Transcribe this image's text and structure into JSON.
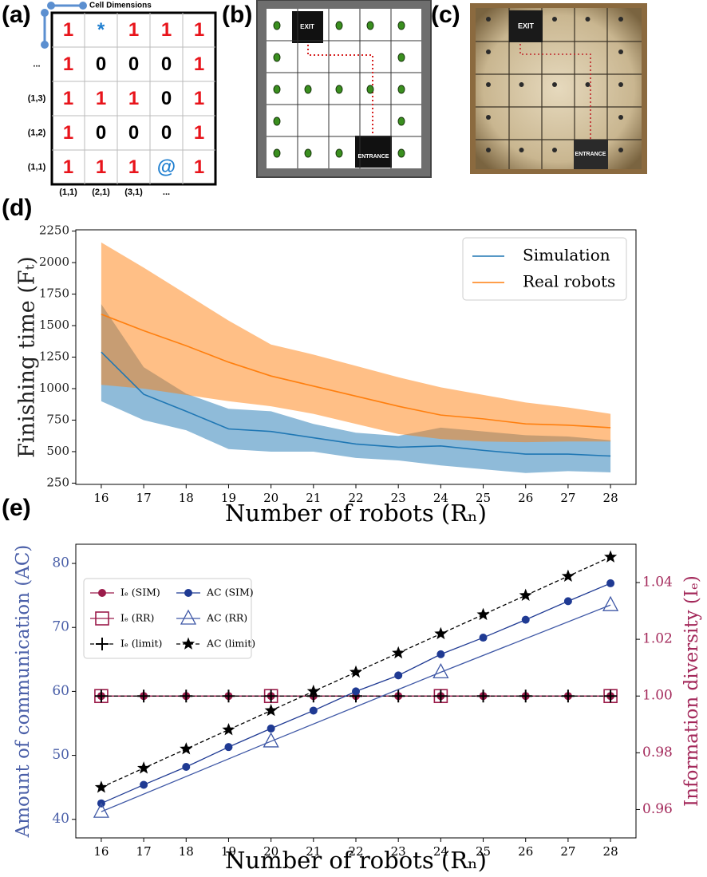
{
  "panels": {
    "a": {
      "label": "(a)",
      "cell_dimensions": "Cell Dimensions",
      "cells": [
        [
          "1",
          "*",
          "1",
          "1",
          "1"
        ],
        [
          "1",
          "0",
          "0",
          "0",
          "1"
        ],
        [
          "1",
          "1",
          "1",
          "0",
          "1"
        ],
        [
          "1",
          "0",
          "0",
          "0",
          "1"
        ],
        [
          "1",
          "1",
          "1",
          "@",
          "1"
        ]
      ],
      "row_labels": [
        "...",
        "(1,3)",
        "(1,2)",
        "(1,1)"
      ],
      "col_labels": [
        "(1,1)",
        "(2,1)",
        "(3,1)",
        "..."
      ]
    },
    "b": {
      "label": "(b)",
      "exit": "EXIT",
      "entrance": "ENTRANCE"
    },
    "c": {
      "label": "(c)",
      "exit": "EXIT",
      "entrance": "ENTRANCE"
    }
  },
  "chart_data": [
    {
      "type": "line",
      "panel_label": "(d)",
      "x": [
        16,
        17,
        18,
        19,
        20,
        21,
        22,
        23,
        24,
        25,
        26,
        27,
        28
      ],
      "xlim": [
        15.4,
        28.6
      ],
      "xticks": [
        16,
        17,
        18,
        19,
        20,
        21,
        22,
        23,
        24,
        25,
        26,
        27,
        28
      ],
      "ylim": [
        240,
        2260
      ],
      "yticks": [
        250,
        500,
        750,
        1000,
        1250,
        1500,
        1750,
        2000,
        2250
      ],
      "xlabel": "Number of robots (Rₙ)",
      "ylabel": "Finishing time (Fₜ)",
      "legend": "upper right",
      "series": [
        {
          "name": "Simulation",
          "color": "#1f77b4",
          "values": [
            1290,
            955,
            820,
            680,
            660,
            610,
            560,
            535,
            545,
            510,
            480,
            480,
            465
          ],
          "lower": [
            900,
            750,
            670,
            520,
            500,
            500,
            450,
            430,
            390,
            360,
            330,
            345,
            335
          ],
          "upper": [
            1670,
            1170,
            960,
            840,
            820,
            720,
            650,
            625,
            690,
            660,
            630,
            620,
            590
          ]
        },
        {
          "name": "Real robots",
          "color": "#ff7f0e",
          "values": [
            1590,
            1460,
            1340,
            1210,
            1100,
            1020,
            940,
            860,
            790,
            760,
            720,
            710,
            690
          ],
          "lower": [
            1030,
            1000,
            950,
            900,
            860,
            800,
            720,
            640,
            600,
            580,
            575,
            580,
            580
          ],
          "upper": [
            2160,
            1960,
            1750,
            1540,
            1350,
            1270,
            1180,
            1090,
            1010,
            950,
            890,
            850,
            800
          ]
        }
      ]
    },
    {
      "type": "line",
      "panel_label": "(e)",
      "x": [
        16,
        17,
        18,
        19,
        20,
        21,
        22,
        23,
        24,
        25,
        26,
        27,
        28
      ],
      "xlim": [
        15.4,
        28.6
      ],
      "xticks": [
        16,
        17,
        18,
        19,
        20,
        21,
        22,
        23,
        24,
        25,
        26,
        27,
        28
      ],
      "ylim": [
        37.1,
        83.0
      ],
      "yticks": [
        40,
        50,
        60,
        70,
        80
      ],
      "y2lim": [
        0.95,
        1.0535
      ],
      "y2ticks": [
        0.96,
        0.98,
        {
          "value": 1,
          "label": "1.00"
        },
        1.02,
        1.04
      ],
      "xlabel": "Number of robots (Rₙ)",
      "ylabel": "Amount of communication (AC)",
      "y2label": "Information diversity (Iₑ)",
      "ylabel_color": "#4a5fa8",
      "y2label_color": "#a3285a",
      "legend": "upper left",
      "series": [
        {
          "name": "Iₑ (SIM)",
          "color": "#9b1b4a",
          "axis": "y2",
          "marker": "circle",
          "values": [
            1,
            1,
            1,
            1,
            1,
            1,
            1,
            1,
            1,
            1,
            1,
            1,
            1
          ]
        },
        {
          "name": "Iₑ (RR)",
          "color": "#9b1b4a",
          "axis": "y2",
          "marker": "square-open",
          "x": [
            16,
            20,
            24,
            28
          ],
          "values": [
            1,
            1,
            1,
            1
          ]
        },
        {
          "name": "Iₑ (limit)",
          "color": "#000000",
          "axis": "y2",
          "marker": "plus",
          "dash": true,
          "values": [
            1,
            1,
            1,
            1,
            1,
            1,
            1,
            1,
            1,
            1,
            1,
            1,
            1
          ]
        },
        {
          "name": "AC (SIM)",
          "color": "#1f3a93",
          "marker": "circle",
          "values": [
            42.5,
            45.4,
            48.2,
            51.3,
            54.2,
            57.0,
            60.0,
            62.5,
            65.8,
            68.4,
            71.2,
            74.1,
            76.9
          ]
        },
        {
          "name": "AC (RR)",
          "color": "#3f58a6",
          "marker": "triangle-open",
          "x": [
            16,
            20,
            24,
            28
          ],
          "values": [
            41.2,
            52.2,
            63.0,
            73.5
          ]
        },
        {
          "name": "AC (limit)",
          "color": "#000000",
          "marker": "star",
          "dash": true,
          "values": [
            45,
            48,
            51,
            54,
            57,
            60,
            63,
            66,
            69,
            72,
            75,
            78,
            81
          ]
        }
      ]
    }
  ]
}
